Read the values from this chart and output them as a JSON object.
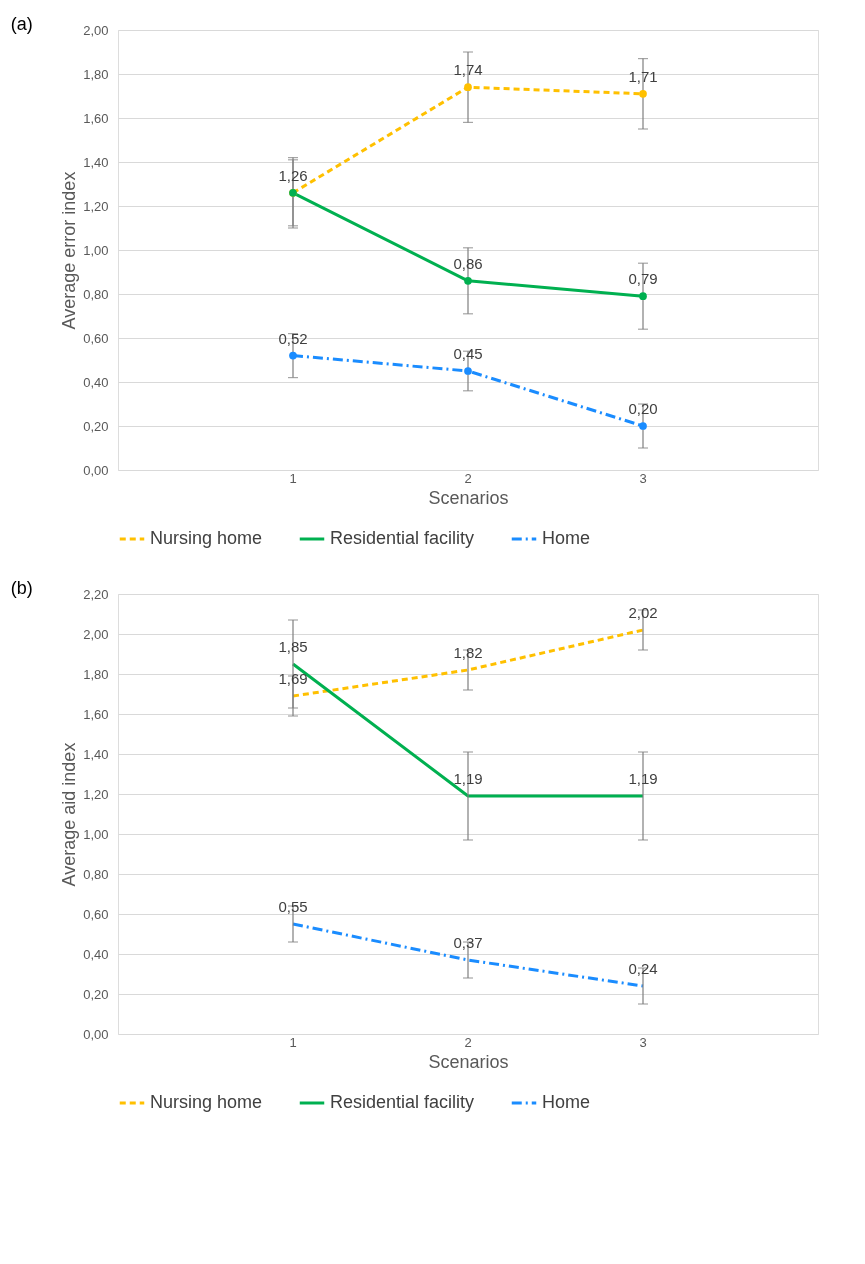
{
  "chart_data": [
    {
      "type": "line",
      "title": "(a)",
      "xlabel": "Scenarios",
      "ylabel": "Average error index",
      "categories": [
        "1",
        "2",
        "3"
      ],
      "ylim": [
        0,
        2
      ],
      "yticks": [
        {
          "value": 0,
          "label": "0,00"
        },
        {
          "value": 0.2,
          "label": "0,20"
        },
        {
          "value": 0.4,
          "label": "0,40"
        },
        {
          "value": 0.6,
          "label": "0,60"
        },
        {
          "value": 0.8,
          "label": "0,80"
        },
        {
          "value": 1.0,
          "label": "1,00"
        },
        {
          "value": 1.2,
          "label": "1,20"
        },
        {
          "value": 1.4,
          "label": "1,40"
        },
        {
          "value": 1.6,
          "label": "1,60"
        },
        {
          "value": 1.8,
          "label": "1,80"
        },
        {
          "value": 2.0,
          "label": "2,00"
        }
      ],
      "grid": "y",
      "legend": "bottom",
      "marker": "circle",
      "series": [
        {
          "name": "Nursing home",
          "color": "#ffc000",
          "line_style": "dashed",
          "values": [
            1.26,
            1.74,
            1.71
          ],
          "errors": [
            0.15,
            0.16,
            0.16
          ],
          "value_labels": [
            null,
            "1,74",
            "1,71"
          ]
        },
        {
          "name": "Residential facility",
          "color": "#00b050",
          "line_style": "solid",
          "values": [
            1.26,
            0.86,
            0.79
          ],
          "errors": [
            0.16,
            0.15,
            0.15
          ],
          "value_labels": [
            "1,26",
            "0,86",
            "0,79"
          ]
        },
        {
          "name": "Home",
          "color": "#1a8cff",
          "line_style": "dashdot",
          "values": [
            0.52,
            0.45,
            0.2
          ],
          "errors": [
            0.1,
            0.09,
            0.1
          ],
          "value_labels": [
            "0,52",
            "0,45",
            "0,20"
          ]
        }
      ]
    },
    {
      "type": "line",
      "title": "(b)",
      "xlabel": "Scenarios",
      "ylabel": "Average aid index",
      "categories": [
        "1",
        "2",
        "3"
      ],
      "ylim": [
        0,
        2.2
      ],
      "yticks": [
        {
          "value": 0,
          "label": "0,00"
        },
        {
          "value": 0.2,
          "label": "0,20"
        },
        {
          "value": 0.4,
          "label": "0,40"
        },
        {
          "value": 0.6,
          "label": "0,60"
        },
        {
          "value": 0.8,
          "label": "0,80"
        },
        {
          "value": 1.0,
          "label": "1,00"
        },
        {
          "value": 1.2,
          "label": "1,20"
        },
        {
          "value": 1.4,
          "label": "1,40"
        },
        {
          "value": 1.6,
          "label": "1,60"
        },
        {
          "value": 1.8,
          "label": "1,80"
        },
        {
          "value": 2.0,
          "label": "2,00"
        },
        {
          "value": 2.2,
          "label": "2,20"
        }
      ],
      "grid": "y",
      "legend": "bottom",
      "marker": "none",
      "series": [
        {
          "name": "Nursing home",
          "color": "#ffc000",
          "line_style": "dashed",
          "values": [
            1.69,
            1.82,
            2.02
          ],
          "errors": [
            0.1,
            0.1,
            0.1
          ],
          "value_labels": [
            "1,69",
            "1,82",
            "2,02"
          ]
        },
        {
          "name": "Residential facility",
          "color": "#00b050",
          "line_style": "solid",
          "values": [
            1.85,
            1.19,
            1.19
          ],
          "errors": [
            0.22,
            0.22,
            0.22
          ],
          "value_labels": [
            "1,85",
            "1,19",
            "1,19"
          ]
        },
        {
          "name": "Home",
          "color": "#1a8cff",
          "line_style": "dashdot",
          "values": [
            0.55,
            0.37,
            0.24
          ],
          "errors": [
            0.09,
            0.09,
            0.09
          ],
          "value_labels": [
            "0,55",
            "0,37",
            "0,24"
          ]
        }
      ]
    }
  ]
}
